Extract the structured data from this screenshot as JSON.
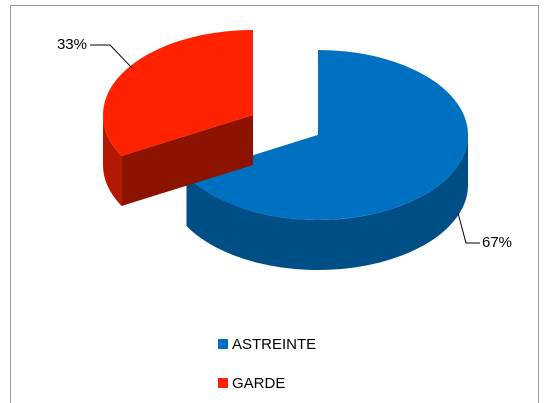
{
  "chart_data": {
    "type": "pie3d",
    "categories": [
      "ASTREINTE",
      "GARDE"
    ],
    "values": [
      67,
      33
    ],
    "value_labels": [
      "67%",
      "33%"
    ],
    "colors": [
      "#0070c0",
      "#ff2200"
    ],
    "exploded": [
      false,
      true
    ],
    "legend": "bottom"
  }
}
